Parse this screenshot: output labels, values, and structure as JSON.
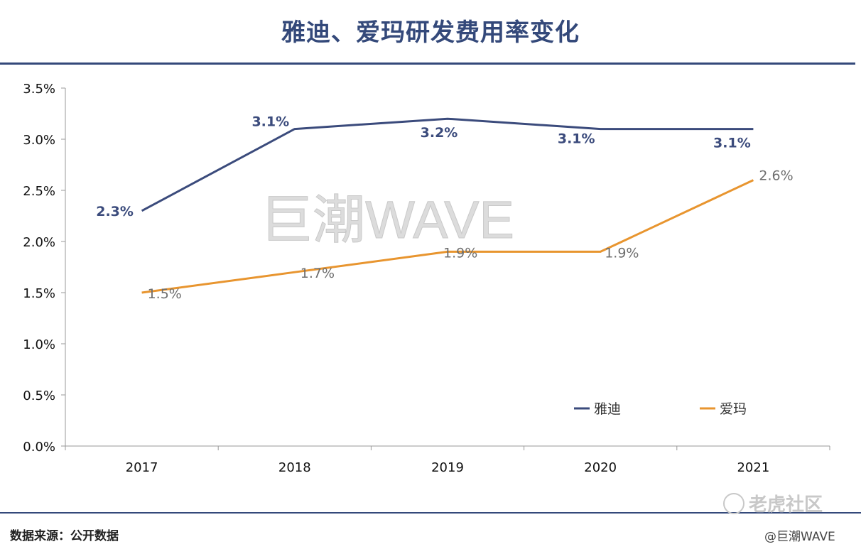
{
  "chart_data": {
    "type": "line",
    "title": "雅迪、爱玛研发费用率变化",
    "categories": [
      "2017",
      "2018",
      "2019",
      "2020",
      "2021"
    ],
    "ylim": [
      0,
      3.5
    ],
    "ytick_values": [
      0,
      0.5,
      1.0,
      1.5,
      2.0,
      2.5,
      3.0,
      3.5
    ],
    "ytick_labels": [
      "0.0%",
      "0.5%",
      "1.0%",
      "1.5%",
      "2.0%",
      "2.5%",
      "3.0%",
      "3.5%"
    ],
    "series": [
      {
        "name": "雅迪",
        "values": [
          2.3,
          3.1,
          3.2,
          3.1,
          3.1
        ],
        "labels": [
          "2.3%",
          "3.1%",
          "3.2%",
          "3.1%",
          "3.1%"
        ],
        "color": "#3b4b7c"
      },
      {
        "name": "爱玛",
        "values": [
          1.5,
          1.7,
          1.9,
          1.9,
          2.6
        ],
        "labels": [
          "1.5%",
          "1.7%",
          "1.9%",
          "1.9%",
          "2.6%"
        ],
        "color": "#e8952f"
      }
    ],
    "legend_position": "bottom-right",
    "watermark": "巨潮WAVE"
  },
  "footer": {
    "source": "数据来源：公开数据",
    "logo_text": "老虎社区",
    "handle": "@巨潮WAVE"
  },
  "colors": {
    "navy": "#34497a",
    "orange": "#e8952f",
    "axis": "#999999"
  }
}
